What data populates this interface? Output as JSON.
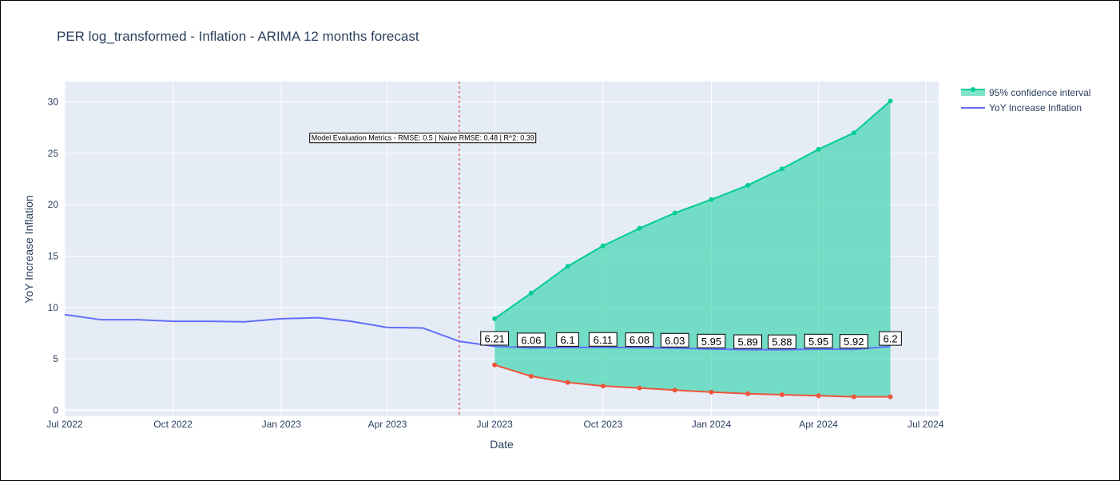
{
  "chart_data": {
    "type": "line",
    "title": "PER log_transformed - Inflation - ARIMA 12 months forecast",
    "xlabel": "Date",
    "ylabel": "YoY Increase Inflation",
    "x_ticks": [
      "2022-07-01",
      "2022-10-01",
      "2023-01-01",
      "2023-04-01",
      "2023-07-01",
      "2023-10-01",
      "2024-01-01",
      "2024-04-01",
      "2024-07-01"
    ],
    "x_tick_labels": [
      "Jul 2022",
      "Oct 2022",
      "Jan 2023",
      "Apr 2023",
      "Jul 2023",
      "Oct 2023",
      "Jan 2024",
      "Apr 2024",
      "Jul 2024"
    ],
    "x_range": [
      "2022-07-01",
      "2024-07-12"
    ],
    "y_ticks": [
      0,
      5,
      10,
      15,
      20,
      25,
      30
    ],
    "ylim": [
      -0.6,
      32
    ],
    "grid": true,
    "legend_position": "top-right",
    "vline": {
      "date": "2023-06-01",
      "color": "#d62728",
      "style": "dotted"
    },
    "metrics_annotation": "Model Evaluation Metrics - RMSE: 0.5 | Naive RMSE: 0.48 | R^2: 0.39",
    "series": [
      {
        "name": "YoY Increase Inflation",
        "color": "#636efa",
        "x": [
          "2022-07-01",
          "2022-08-01",
          "2022-09-01",
          "2022-10-01",
          "2022-11-01",
          "2022-12-01",
          "2023-01-01",
          "2023-02-01",
          "2023-03-01",
          "2023-04-01",
          "2023-05-01",
          "2023-06-01",
          "2023-07-01",
          "2023-08-01",
          "2023-09-01",
          "2023-10-01",
          "2023-11-01",
          "2023-12-01",
          "2024-01-01",
          "2024-02-01",
          "2024-03-01",
          "2024-04-01",
          "2024-05-01",
          "2024-06-01"
        ],
        "y": [
          9.3,
          8.8,
          8.8,
          8.65,
          8.65,
          8.6,
          8.9,
          9.0,
          8.65,
          8.05,
          8.0,
          6.7,
          6.21,
          6.06,
          6.1,
          6.11,
          6.08,
          6.03,
          5.95,
          5.89,
          5.88,
          5.95,
          5.92,
          6.2
        ]
      },
      {
        "name": "95% confidence interval",
        "role": "upper",
        "color": "#00cc96",
        "x": [
          "2023-07-01",
          "2023-08-01",
          "2023-09-01",
          "2023-10-01",
          "2023-11-01",
          "2023-12-01",
          "2024-01-01",
          "2024-02-01",
          "2024-03-01",
          "2024-04-01",
          "2024-05-01",
          "2024-06-01"
        ],
        "y": [
          8.9,
          11.4,
          14.0,
          16.0,
          17.7,
          19.2,
          20.5,
          21.9,
          23.5,
          25.4,
          27.0,
          30.1
        ]
      },
      {
        "role": "lower",
        "color": "#ef553b",
        "x": [
          "2023-07-01",
          "2023-08-01",
          "2023-09-01",
          "2023-10-01",
          "2023-11-01",
          "2023-12-01",
          "2024-01-01",
          "2024-02-01",
          "2024-03-01",
          "2024-04-01",
          "2024-05-01",
          "2024-06-01"
        ],
        "y": [
          4.4,
          3.3,
          2.7,
          2.35,
          2.15,
          1.95,
          1.75,
          1.6,
          1.5,
          1.4,
          1.3,
          1.3
        ]
      }
    ],
    "fill_color": "#00cc96",
    "data_labels": [
      {
        "x": "2023-07-01",
        "text": "6.21"
      },
      {
        "x": "2023-08-01",
        "text": "6.06"
      },
      {
        "x": "2023-09-01",
        "text": "6.1"
      },
      {
        "x": "2023-10-01",
        "text": "6.11"
      },
      {
        "x": "2023-11-01",
        "text": "6.08"
      },
      {
        "x": "2023-12-01",
        "text": "6.03"
      },
      {
        "x": "2024-01-01",
        "text": "5.95"
      },
      {
        "x": "2024-02-01",
        "text": "5.89"
      },
      {
        "x": "2024-03-01",
        "text": "5.88"
      },
      {
        "x": "2024-04-01",
        "text": "5.95"
      },
      {
        "x": "2024-05-01",
        "text": "5.92"
      },
      {
        "x": "2024-06-01",
        "text": "6.2"
      }
    ],
    "legend": [
      {
        "label": "95% confidence interval",
        "color": "#00cc96",
        "kind": "band"
      },
      {
        "label": "YoY Increase Inflation",
        "color": "#636efa",
        "kind": "line"
      }
    ]
  }
}
